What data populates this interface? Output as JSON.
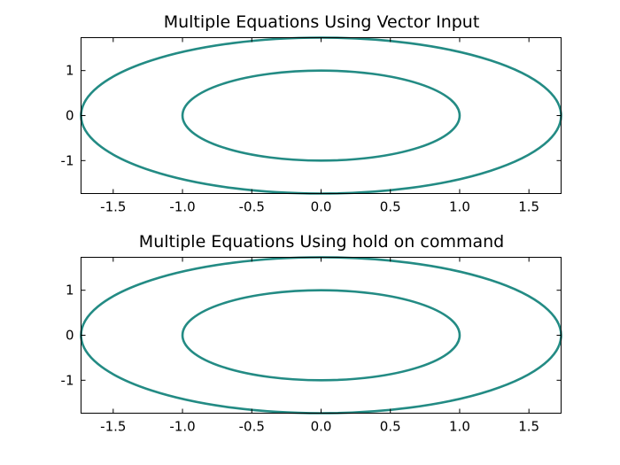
{
  "chart_data": [
    {
      "type": "line",
      "title": "Multiple Equations Using Vector Input",
      "xlabel": "",
      "ylabel": "",
      "xlim": [
        -1.7321,
        1.7321
      ],
      "ylim": [
        -1.7321,
        1.7321
      ],
      "xticks": [
        -1.5,
        -1.0,
        -0.5,
        0.0,
        0.5,
        1.0,
        1.5
      ],
      "xtick_labels": [
        "-1.5",
        "-1.0",
        "-0.5",
        "0.0",
        "0.5",
        "1.0",
        "1.5"
      ],
      "yticks": [
        -1,
        0,
        1
      ],
      "ytick_labels": [
        "-1",
        "0",
        "1"
      ],
      "grid": false,
      "line_color": "#238b84",
      "series": [
        {
          "shape": "ellipse",
          "x_radius": 1.0,
          "y_radius": 1.0
        },
        {
          "shape": "ellipse",
          "x_radius": 1.7321,
          "y_radius": 1.7321
        }
      ]
    },
    {
      "type": "line",
      "title": "Multiple Equations Using hold on command",
      "xlabel": "",
      "ylabel": "",
      "xlim": [
        -1.7321,
        1.7321
      ],
      "ylim": [
        -1.7321,
        1.7321
      ],
      "xticks": [
        -1.5,
        -1.0,
        -0.5,
        0.0,
        0.5,
        1.0,
        1.5
      ],
      "xtick_labels": [
        "-1.5",
        "-1.0",
        "-0.5",
        "0.0",
        "0.5",
        "1.0",
        "1.5"
      ],
      "yticks": [
        -1,
        0,
        1
      ],
      "ytick_labels": [
        "-1",
        "0",
        "1"
      ],
      "grid": false,
      "line_color": "#238b84",
      "series": [
        {
          "shape": "ellipse",
          "x_radius": 1.0,
          "y_radius": 1.0
        },
        {
          "shape": "ellipse",
          "x_radius": 1.7321,
          "y_radius": 1.7321
        }
      ]
    }
  ]
}
